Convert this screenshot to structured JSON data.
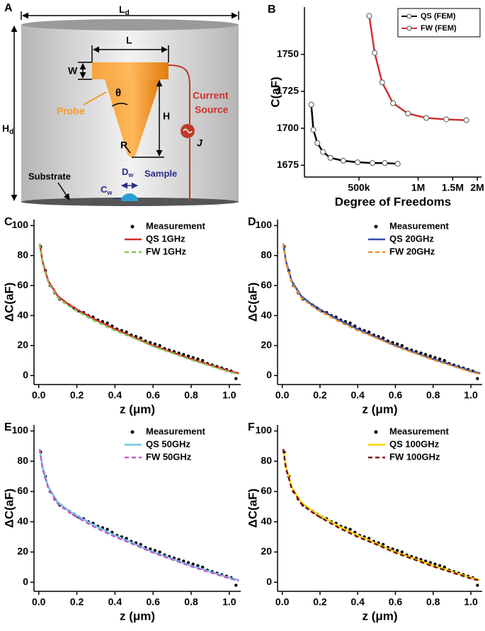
{
  "diagram": {
    "panel": "A",
    "labels": {
      "Ld": {
        "text": "L",
        "sub": "d"
      },
      "L": "L",
      "W": "W",
      "theta": "θ",
      "H": "H",
      "Hd": {
        "text": "H",
        "sub": "d"
      },
      "R": "R",
      "probe": "Probe",
      "current": "Current",
      "source": "Source",
      "J": "J",
      "substrate": "Substrate",
      "Dw": {
        "text": "D",
        "sub": "w"
      },
      "sample": "Sample",
      "Cw": {
        "text": "C",
        "sub": "w"
      }
    }
  },
  "chart_data": [
    {
      "type": "line",
      "panel": "B",
      "xlabel": "Degree of Freedoms",
      "ylabel": "C(aF)",
      "xscale": "log",
      "xlim": [
        264000,
        2100000
      ],
      "xticks": [
        {
          "value": 500000,
          "label": "500k"
        },
        {
          "value": 1000000,
          "label": "1M"
        },
        {
          "value": 1500000,
          "label": "1.5M"
        },
        {
          "value": 2000000,
          "label": "2M"
        }
      ],
      "ylim": [
        1667,
        1782
      ],
      "yticks": [
        1675,
        1700,
        1725,
        1750
      ],
      "legend": "top-right",
      "legend_box": true,
      "series": [
        {
          "name": "QS (FEM)",
          "color": "#000000",
          "mode": "line-markers",
          "style": "solid",
          "x": [
            286000,
            293000,
            307000,
            328000,
            358000,
            416000,
            492000,
            586000,
            677000,
            787000
          ],
          "values": [
            1716,
            1699,
            1690,
            1684,
            1680,
            1678,
            1677,
            1676.5,
            1676.5,
            1676
          ]
        },
        {
          "name": "FW (FEM)",
          "color": "#d03030",
          "mode": "line-markers",
          "style": "solid",
          "x": [
            564000,
            601000,
            656000,
            745000,
            888000,
            1100000,
            1390000,
            1760000
          ],
          "values": [
            1776,
            1751,
            1731,
            1717,
            1710,
            1707,
            1706,
            1705.5
          ]
        }
      ]
    },
    {
      "type": "line",
      "panel": "C",
      "xlabel": "z (μm)",
      "ylabel": "ΔC(aF)",
      "xlim": [
        -0.025,
        1.06
      ],
      "xticks": [
        {
          "value": 0,
          "label": "0.0"
        },
        0.2,
        0.4,
        0.6,
        0.8,
        {
          "value": 1,
          "label": "1.0"
        }
      ],
      "ylim": [
        -6,
        104
      ],
      "yticks": [
        0,
        20,
        40,
        60,
        80,
        100
      ],
      "legend": "top-right",
      "legend_box": false,
      "series": [
        {
          "name": "Measurement",
          "color": "#000000",
          "mode": "markers",
          "x": [
            0.01,
            0.035,
            0.06,
            0.085,
            0.11,
            0.135,
            0.16,
            0.185,
            0.21,
            0.235,
            0.26,
            0.285,
            0.31,
            0.335,
            0.36,
            0.385,
            0.41,
            0.435,
            0.46,
            0.485,
            0.51,
            0.535,
            0.56,
            0.585,
            0.61,
            0.635,
            0.66,
            0.685,
            0.71,
            0.735,
            0.76,
            0.785,
            0.81,
            0.835,
            0.86,
            0.885,
            0.91,
            0.935,
            0.96,
            0.985,
            1.01,
            1.035
          ],
          "values": [
            86,
            70,
            60,
            55,
            51,
            49,
            47,
            45,
            43,
            42,
            40,
            39,
            37,
            36,
            35,
            33,
            31,
            30,
            29,
            27,
            26,
            25,
            23,
            22,
            21,
            20,
            18,
            17,
            16,
            15,
            14,
            13,
            12,
            11,
            10,
            8,
            7,
            6,
            5,
            4,
            3,
            -2
          ]
        },
        {
          "name": "QS 1GHz",
          "color": "#d62a2a",
          "mode": "line",
          "style": "solid",
          "x": [
            0.005,
            0.02,
            0.05,
            0.1,
            0.15,
            0.2,
            0.3,
            0.4,
            0.5,
            0.6,
            0.7,
            0.8,
            0.9,
            1.0,
            1.05
          ],
          "values": [
            88,
            76,
            63,
            53,
            48,
            44,
            37,
            31,
            25.5,
            20,
            15.5,
            11,
            7,
            3,
            1.5
          ]
        },
        {
          "name": "FW 1GHz",
          "color": "#7ec850",
          "mode": "line",
          "style": "dashed",
          "x": [
            0.005,
            0.02,
            0.05,
            0.1,
            0.15,
            0.2,
            0.3,
            0.4,
            0.5,
            0.6,
            0.7,
            0.8,
            0.9,
            1.0,
            1.05
          ],
          "values": [
            88,
            75,
            62,
            52,
            47,
            43,
            36,
            30,
            25,
            19.5,
            15,
            10.5,
            6.5,
            2.5,
            1
          ]
        }
      ]
    },
    {
      "type": "line",
      "panel": "D",
      "xlabel": "z (μm)",
      "ylabel": "ΔC(aF)",
      "xlim": [
        -0.025,
        1.06
      ],
      "xticks": [
        {
          "value": 0,
          "label": "0.0"
        },
        0.2,
        0.4,
        0.6,
        0.8,
        {
          "value": 1,
          "label": "1.0"
        }
      ],
      "ylim": [
        -6,
        104
      ],
      "yticks": [
        0,
        20,
        40,
        60,
        80,
        100
      ],
      "legend": "top-right",
      "legend_box": false,
      "series": [
        {
          "name": "Measurement",
          "color": "#000000",
          "mode": "markers",
          "x": [
            0.01,
            0.035,
            0.06,
            0.085,
            0.11,
            0.135,
            0.16,
            0.185,
            0.21,
            0.235,
            0.26,
            0.285,
            0.31,
            0.335,
            0.36,
            0.385,
            0.41,
            0.435,
            0.46,
            0.485,
            0.51,
            0.535,
            0.56,
            0.585,
            0.61,
            0.635,
            0.66,
            0.685,
            0.71,
            0.735,
            0.76,
            0.785,
            0.81,
            0.835,
            0.86,
            0.885,
            0.91,
            0.935,
            0.96,
            0.985,
            1.01,
            1.035
          ],
          "values": [
            86,
            70,
            60,
            55,
            51,
            49,
            47,
            45,
            43,
            42,
            40,
            39,
            37,
            36,
            35,
            33,
            31,
            30,
            29,
            27,
            26,
            25,
            23,
            22,
            21,
            20,
            18,
            17,
            16,
            15,
            14,
            13,
            12,
            11,
            10,
            8,
            7,
            6,
            5,
            4,
            3,
            -2
          ]
        },
        {
          "name": "QS 20GHz",
          "color": "#2f4fa8",
          "mode": "line",
          "style": "solid",
          "x": [
            0.005,
            0.02,
            0.05,
            0.1,
            0.15,
            0.2,
            0.3,
            0.4,
            0.5,
            0.6,
            0.7,
            0.8,
            0.9,
            1.0,
            1.05
          ],
          "values": [
            88,
            76,
            63,
            53,
            48,
            44,
            37,
            31,
            25.5,
            20,
            15.5,
            11,
            7,
            3,
            1.5
          ]
        },
        {
          "name": "FW 20GHz",
          "color": "#f28e2b",
          "mode": "line",
          "style": "dashed",
          "x": [
            0.005,
            0.02,
            0.05,
            0.1,
            0.15,
            0.2,
            0.3,
            0.4,
            0.5,
            0.6,
            0.7,
            0.8,
            0.9,
            1.0,
            1.05
          ],
          "values": [
            88,
            75,
            62,
            52,
            47,
            43,
            36,
            30,
            25,
            19.5,
            15,
            10.5,
            6.5,
            2.5,
            1
          ]
        }
      ]
    },
    {
      "type": "line",
      "panel": "E",
      "xlabel": "z (μm)",
      "ylabel": "ΔC(aF)",
      "xlim": [
        -0.025,
        1.06
      ],
      "xticks": [
        {
          "value": 0,
          "label": "0.0"
        },
        0.2,
        0.4,
        0.6,
        0.8,
        {
          "value": 1,
          "label": "1.0"
        }
      ],
      "ylim": [
        -6,
        104
      ],
      "yticks": [
        0,
        20,
        40,
        60,
        80,
        100
      ],
      "legend": "top-right",
      "legend_box": false,
      "series": [
        {
          "name": "Measurement",
          "color": "#000000",
          "mode": "markers",
          "x": [
            0.01,
            0.035,
            0.06,
            0.085,
            0.11,
            0.135,
            0.16,
            0.185,
            0.21,
            0.235,
            0.26,
            0.285,
            0.31,
            0.335,
            0.36,
            0.385,
            0.41,
            0.435,
            0.46,
            0.485,
            0.51,
            0.535,
            0.56,
            0.585,
            0.61,
            0.635,
            0.66,
            0.685,
            0.71,
            0.735,
            0.76,
            0.785,
            0.81,
            0.835,
            0.86,
            0.885,
            0.91,
            0.935,
            0.96,
            0.985,
            1.01,
            1.035
          ],
          "values": [
            86,
            70,
            60,
            55,
            51,
            49,
            47,
            45,
            43,
            42,
            40,
            39,
            37,
            36,
            35,
            33,
            31,
            30,
            29,
            27,
            26,
            25,
            23,
            22,
            21,
            20,
            18,
            17,
            16,
            15,
            14,
            13,
            12,
            11,
            10,
            8,
            7,
            6,
            5,
            4,
            3,
            -2
          ]
        },
        {
          "name": "QS 50GHz",
          "color": "#6ec6e6",
          "mode": "line",
          "style": "solid",
          "x": [
            0.005,
            0.02,
            0.05,
            0.1,
            0.15,
            0.2,
            0.3,
            0.4,
            0.5,
            0.6,
            0.7,
            0.8,
            0.9,
            1.0,
            1.05
          ],
          "values": [
            88,
            76,
            63,
            53,
            48,
            44,
            37,
            31,
            25.5,
            20,
            15.5,
            11,
            7,
            3,
            1.5
          ]
        },
        {
          "name": "FW 50GHz",
          "color": "#c85ac8",
          "mode": "line",
          "style": "dashed",
          "x": [
            0.005,
            0.02,
            0.05,
            0.1,
            0.15,
            0.2,
            0.3,
            0.4,
            0.5,
            0.6,
            0.7,
            0.8,
            0.9,
            1.0,
            1.05
          ],
          "values": [
            88,
            75,
            62,
            52,
            47,
            43,
            36,
            30,
            25,
            19.5,
            15,
            10.5,
            6.5,
            2.5,
            1
          ]
        }
      ]
    },
    {
      "type": "line",
      "panel": "F",
      "xlabel": "z (μm)",
      "ylabel": "ΔC(aF)",
      "xlim": [
        -0.025,
        1.06
      ],
      "xticks": [
        {
          "value": 0,
          "label": "0.0"
        },
        0.2,
        0.4,
        0.6,
        0.8,
        {
          "value": 1,
          "label": "1.0"
        }
      ],
      "ylim": [
        -6,
        104
      ],
      "yticks": [
        0,
        20,
        40,
        60,
        80,
        100
      ],
      "legend": "top-right",
      "legend_box": false,
      "series": [
        {
          "name": "Measurement",
          "color": "#000000",
          "mode": "markers",
          "x": [
            0.01,
            0.035,
            0.06,
            0.085,
            0.11,
            0.135,
            0.16,
            0.185,
            0.21,
            0.235,
            0.26,
            0.285,
            0.31,
            0.335,
            0.36,
            0.385,
            0.41,
            0.435,
            0.46,
            0.485,
            0.51,
            0.535,
            0.56,
            0.585,
            0.61,
            0.635,
            0.66,
            0.685,
            0.71,
            0.735,
            0.76,
            0.785,
            0.81,
            0.835,
            0.86,
            0.885,
            0.91,
            0.935,
            0.96,
            0.985,
            1.01,
            1.035
          ],
          "values": [
            86,
            70,
            60,
            55,
            51,
            49,
            47,
            45,
            43,
            42,
            40,
            39,
            37,
            36,
            35,
            33,
            31,
            30,
            29,
            27,
            26,
            25,
            23,
            22,
            21,
            20,
            18,
            17,
            16,
            15,
            14,
            13,
            12,
            11,
            10,
            8,
            7,
            6,
            5,
            4,
            3,
            -2
          ]
        },
        {
          "name": "QS 100GHz",
          "color": "#f5d800",
          "mode": "line",
          "style": "solid",
          "x": [
            0.005,
            0.02,
            0.05,
            0.1,
            0.15,
            0.2,
            0.3,
            0.4,
            0.5,
            0.6,
            0.7,
            0.8,
            0.9,
            1.0,
            1.05
          ],
          "values": [
            88,
            76,
            63,
            53,
            48,
            44,
            37,
            31,
            25.5,
            20,
            15.5,
            11,
            7,
            3,
            1.5
          ]
        },
        {
          "name": "FW 100GHz",
          "color": "#7a1010",
          "mode": "line",
          "style": "dashed",
          "x": [
            0.005,
            0.02,
            0.05,
            0.1,
            0.15,
            0.2,
            0.3,
            0.4,
            0.5,
            0.6,
            0.7,
            0.8,
            0.9,
            1.0,
            1.05
          ],
          "values": [
            88,
            75,
            62,
            52,
            47,
            43,
            36,
            30,
            25,
            19.5,
            15,
            10.5,
            6.5,
            2.5,
            1
          ]
        }
      ]
    }
  ]
}
